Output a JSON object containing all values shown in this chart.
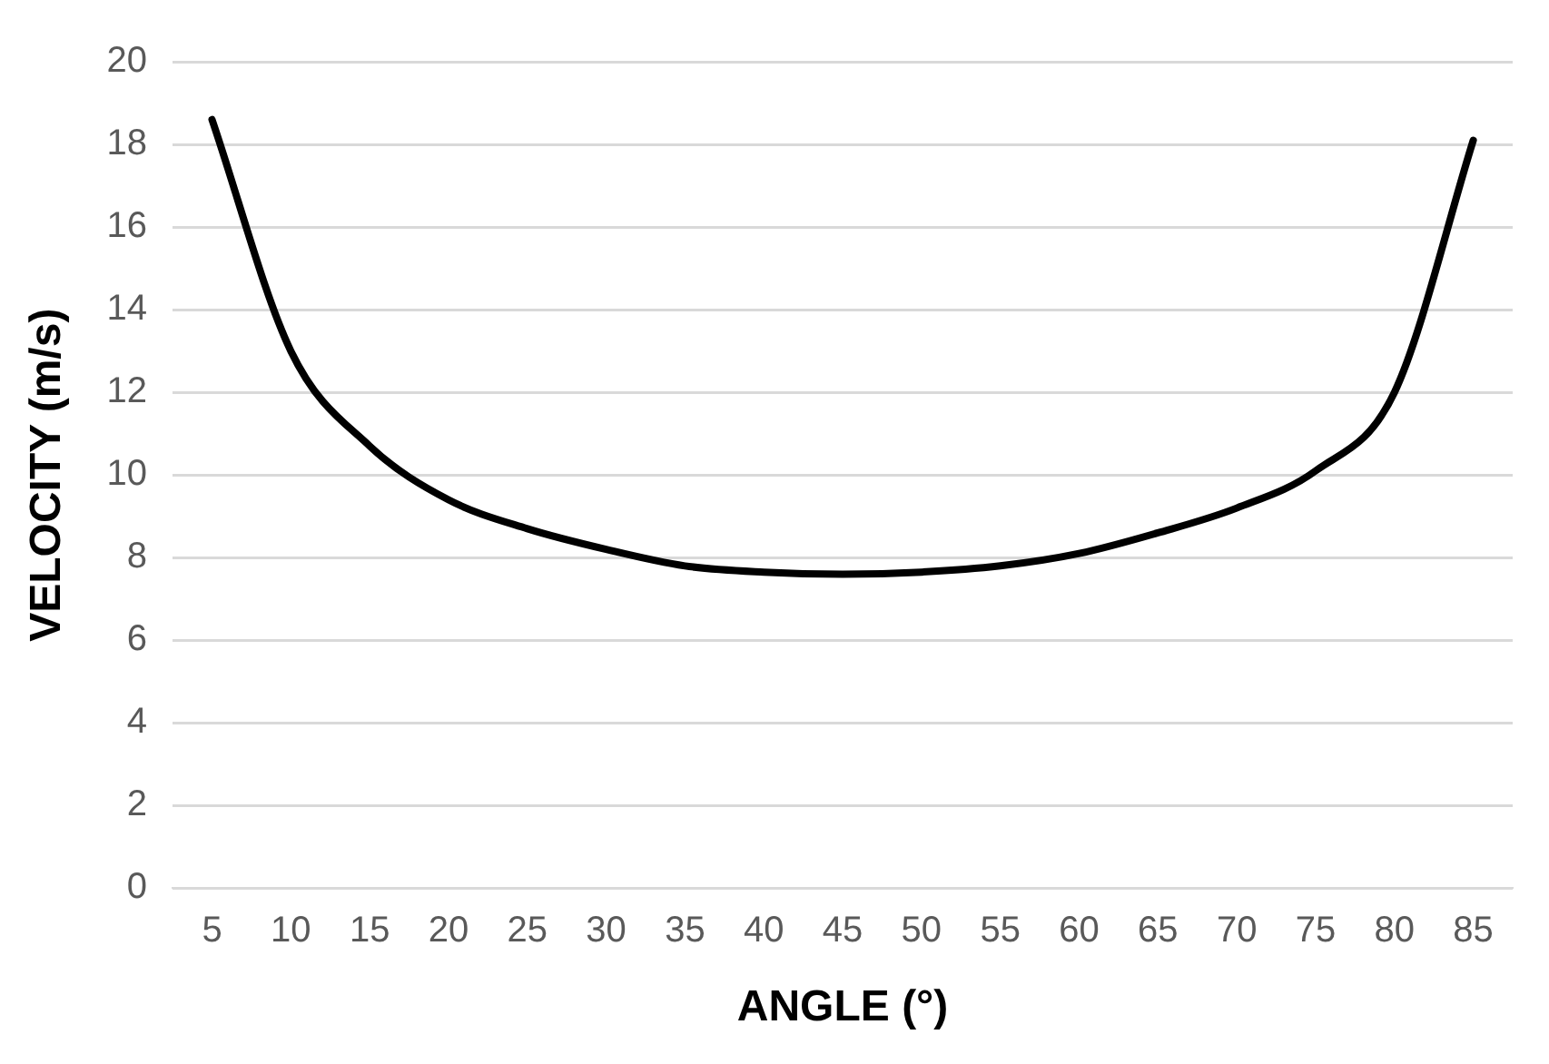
{
  "chart_data": {
    "type": "line",
    "xlabel": "ANGLE (°)",
    "ylabel": "VELOCITY (m/s)",
    "categories": [
      "5",
      "10",
      "15",
      "20",
      "25",
      "30",
      "35",
      "40",
      "45",
      "50",
      "55",
      "60",
      "65",
      "70",
      "75",
      "80",
      "85"
    ],
    "series": [
      {
        "color": "#000000",
        "values": [
          18.6,
          13.0,
          10.7,
          9.4,
          8.7,
          8.2,
          7.8,
          7.65,
          7.6,
          7.65,
          7.8,
          8.1,
          8.6,
          9.2,
          10.1,
          12.0,
          18.1
        ]
      }
    ],
    "ylim": [
      0,
      20
    ],
    "yticks": [
      0,
      2,
      4,
      6,
      8,
      10,
      12,
      14,
      16,
      18,
      20
    ],
    "grid": "y",
    "legend": false,
    "marker": "none",
    "line_style": "solid"
  }
}
